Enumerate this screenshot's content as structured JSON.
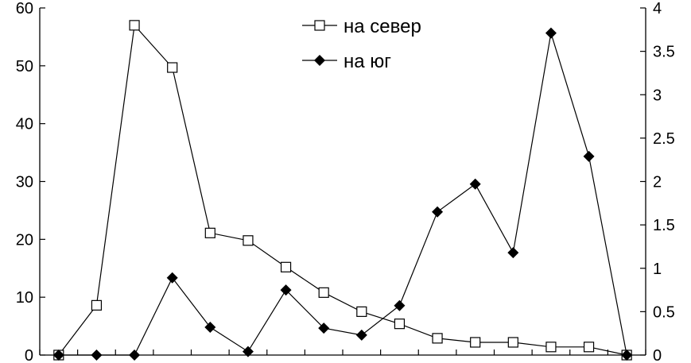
{
  "chart_data": {
    "type": "line",
    "title": "",
    "xlabel": "",
    "ylabel_left": "",
    "ylabel_right": "",
    "y_left": {
      "ylim": [
        0,
        60
      ],
      "ticks": [
        0,
        10,
        20,
        30,
        40,
        50,
        60
      ]
    },
    "y_right": {
      "ylim": [
        0,
        4
      ],
      "ticks": [
        "0",
        "0.5",
        "1",
        "1.5",
        "2",
        "2.5",
        "3",
        "3.5",
        "4"
      ]
    },
    "grid": false,
    "legend_placement": "top-center",
    "series": [
      {
        "name": "на север",
        "axis": "left",
        "marker": "open-square",
        "values": [
          0,
          8.6,
          57,
          49.7,
          21.1,
          19.8,
          15.2,
          10.8,
          7.5,
          5.4,
          2.9,
          2.2,
          2.2,
          1.4,
          1.4,
          0
        ]
      },
      {
        "name": "на юг",
        "axis": "right",
        "marker": "filled-diamond",
        "values": [
          0,
          0,
          0,
          0.89,
          0.32,
          0.04,
          0.75,
          0.31,
          0.23,
          0.57,
          1.65,
          1.97,
          1.18,
          3.71,
          2.29,
          0
        ]
      }
    ]
  }
}
